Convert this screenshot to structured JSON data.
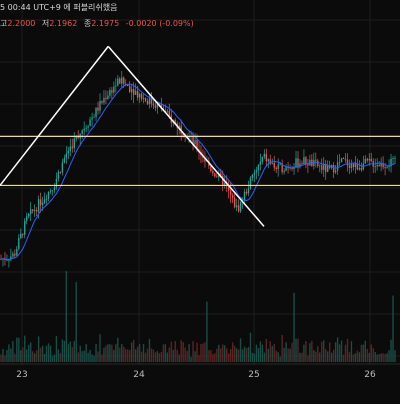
{
  "header": {
    "text": "5 00:44 UTC+9 에 퍼블리쉬했음"
  },
  "ohlc": {
    "high_label": "고",
    "high": "2.2000",
    "low_label": "저",
    "low": "2.1962",
    "close_label": "종",
    "close": "2.1975",
    "change": "-0.0020 (-0.09%)"
  },
  "colors": {
    "background": "#0b0b0b",
    "up": "#26a69a",
    "down": "#ef5350",
    "ma": "#2962ff",
    "trendline": "#ffffff",
    "hline": "#f3d6a6"
  },
  "chart_data": {
    "type": "line",
    "x_ticks": [
      "23",
      "24",
      "25",
      "26"
    ],
    "price_path": [
      2.08,
      2.085,
      2.13,
      2.15,
      2.17,
      2.21,
      2.235,
      2.255,
      2.28,
      2.298,
      2.288,
      2.275,
      2.268,
      2.25,
      2.235,
      2.215,
      2.19,
      2.172,
      2.14,
      2.175,
      2.205,
      2.19,
      2.195,
      2.2,
      2.195,
      2.188,
      2.2,
      2.193,
      2.198,
      2.196,
      2.198
    ],
    "annotations": {
      "upper_resistance": 2.23,
      "lower_support": 2.17,
      "trendline_up": [
        [
          0.0,
          2.17
        ],
        [
          8.2,
          2.34
        ]
      ],
      "trendline_down": [
        [
          8.2,
          2.34
        ],
        [
          20.0,
          2.12
        ]
      ]
    }
  }
}
